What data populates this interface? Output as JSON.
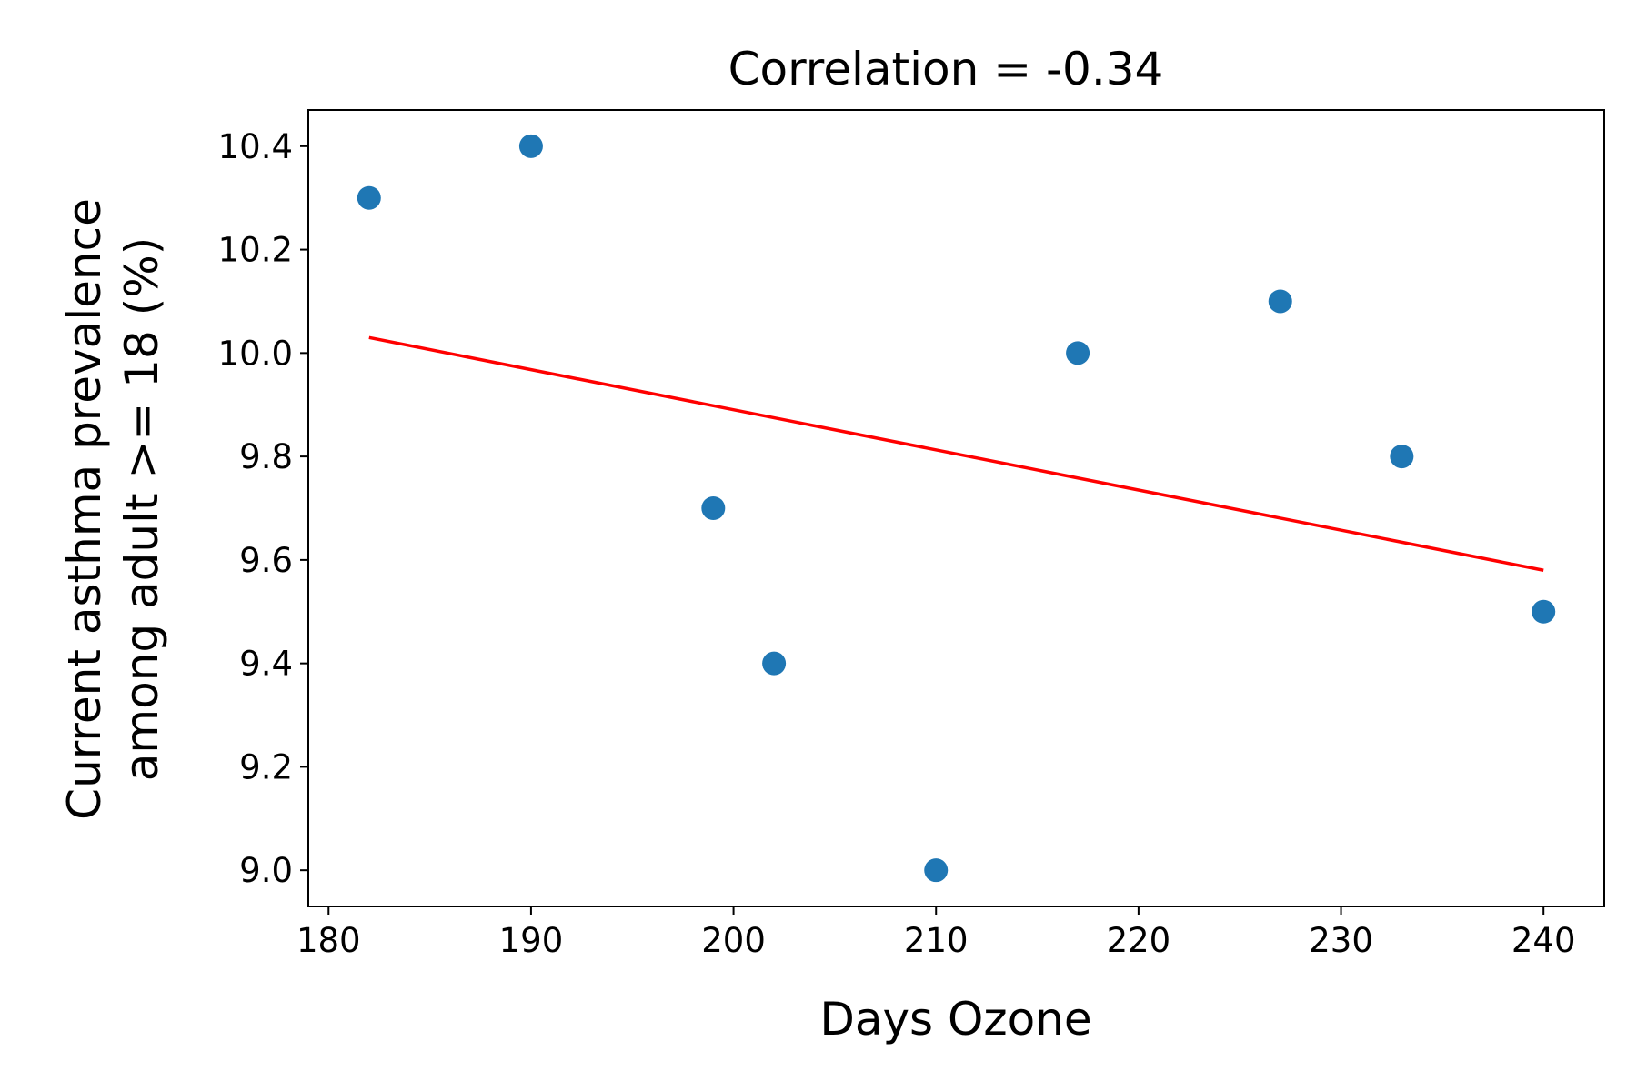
{
  "chart_data": {
    "type": "scatter",
    "title": "Correlation = -0.34",
    "xlabel": "Days Ozone",
    "ylabel_lines": [
      "Current asthma prevalence",
      "among adult >= 18 (%)"
    ],
    "xlim": [
      179,
      243
    ],
    "ylim": [
      8.93,
      10.47
    ],
    "xticks": [
      180,
      190,
      200,
      210,
      220,
      230,
      240
    ],
    "yticks": [
      9.0,
      9.2,
      9.4,
      9.6,
      9.8,
      10.0,
      10.2,
      10.4
    ],
    "ytick_labels": [
      "9.0",
      "9.2",
      "9.4",
      "9.6",
      "9.8",
      "10.0",
      "10.2",
      "10.4"
    ],
    "grid": false,
    "points": [
      {
        "x": 182,
        "y": 10.3
      },
      {
        "x": 190,
        "y": 10.4
      },
      {
        "x": 199,
        "y": 9.7
      },
      {
        "x": 202,
        "y": 9.4
      },
      {
        "x": 210,
        "y": 9.0
      },
      {
        "x": 217,
        "y": 10.0
      },
      {
        "x": 227,
        "y": 10.1
      },
      {
        "x": 233,
        "y": 9.8
      },
      {
        "x": 240,
        "y": 9.5
      }
    ],
    "trendline": {
      "x": [
        182,
        240
      ],
      "y": [
        10.03,
        9.58
      ]
    },
    "colors": {
      "points": "#1f77b4",
      "trendline": "#ff0000"
    }
  }
}
